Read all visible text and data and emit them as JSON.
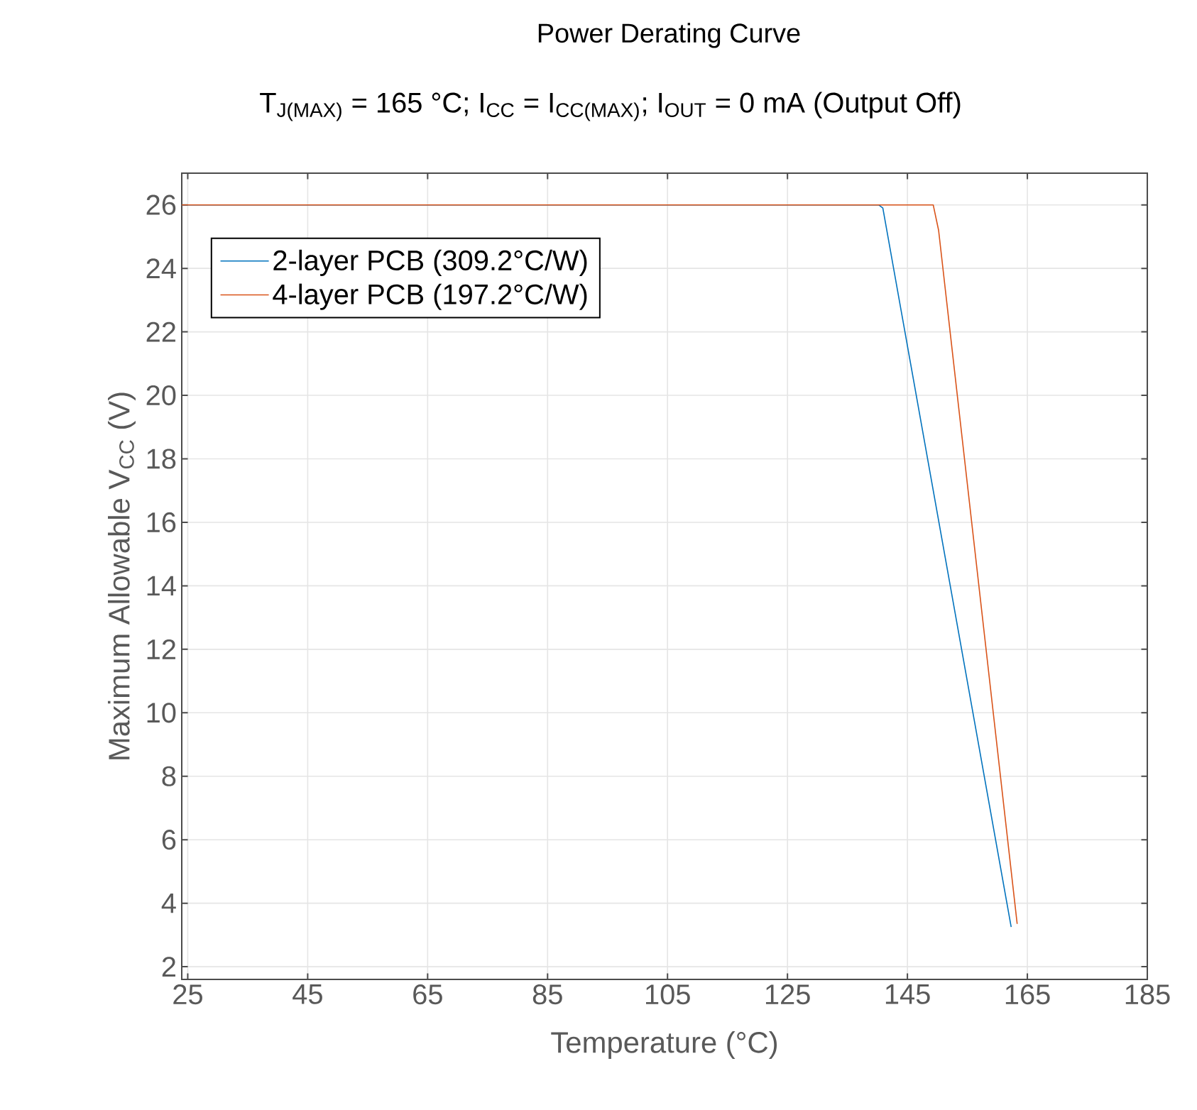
{
  "chart_data": {
    "type": "line",
    "title": "Power Derating Curve",
    "subtitle": "T$_{J(MAX)}$ = 165 °C; I$_{CC}$ = I$_{CC(MAX)}$; I$_{OUT}$ = 0 mA (Output Off)",
    "xlabel": "Temperature (°C)",
    "ylabel": "Maximum Allowable V$_{CC}$ (V)",
    "series": [
      {
        "name": "2-layer PCB (309.2°C/W)",
        "color": "#0072bd",
        "x": [
          24,
          140.2,
          140.9,
          162.3
        ],
        "values": [
          26,
          26,
          25.9,
          3.25
        ]
      },
      {
        "name": "4-layer PCB (197.2°C/W)",
        "color": "#d95319",
        "x": [
          24,
          149.3,
          150.2,
          163.3
        ],
        "values": [
          26,
          26,
          25.2,
          3.35
        ]
      }
    ],
    "xlim": [
      24,
      185
    ],
    "ylim": [
      1.6,
      27
    ],
    "xticks": [
      25,
      45,
      65,
      85,
      105,
      125,
      145,
      165,
      185
    ],
    "yticks": [
      2,
      4,
      6,
      8,
      10,
      12,
      14,
      16,
      18,
      20,
      22,
      24,
      26
    ],
    "grid": true,
    "legend": "top left",
    "marker": "none",
    "line_style": "solid"
  }
}
